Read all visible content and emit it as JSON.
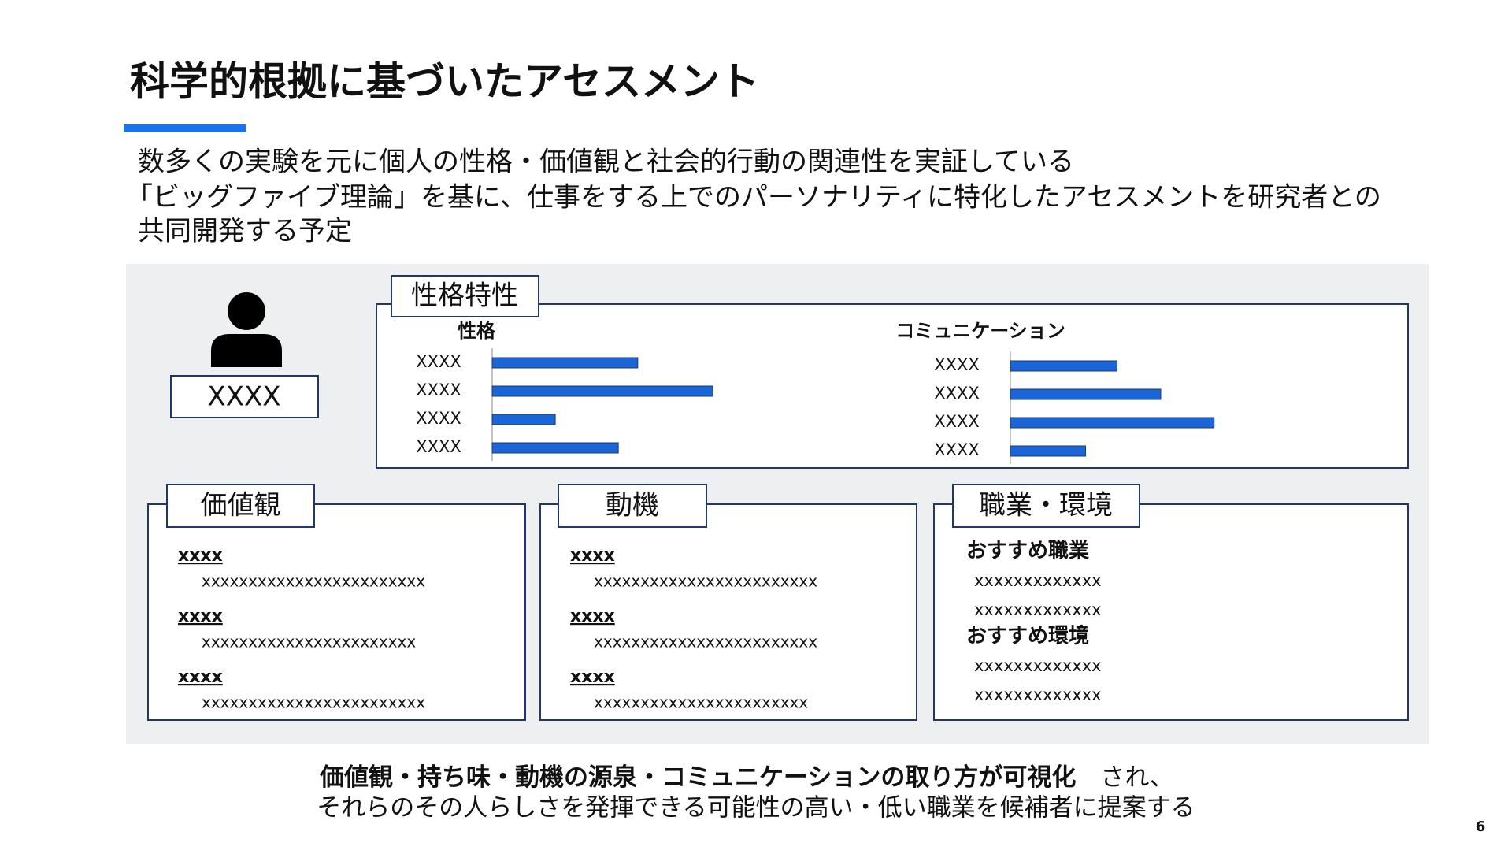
{
  "header": {
    "title": "科学的根拠に基づいたアセスメント"
  },
  "intro": {
    "lines": [
      "数多くの実験を元に個人の性格・価値観と社会的行動の関連性を実証している",
      "「ビッグファイブ理論」を基に、仕事をする上でのパーソナリティに特化したアセスメントを研究者との",
      "共同開発する予定"
    ]
  },
  "profile": {
    "name": "XXXX"
  },
  "traits": {
    "title": "性格特性"
  },
  "chart_data": [
    {
      "type": "bar",
      "title": "性格",
      "categories": [
        "XXXX",
        "XXXX",
        "XXXX",
        "XXXX"
      ],
      "values": [
        60,
        91,
        26,
        52
      ],
      "color": "#1a66d9"
    },
    {
      "type": "bar",
      "title": "コミュニケーション",
      "categories": [
        "XXXX",
        "XXXX",
        "XXXX",
        "XXXX"
      ],
      "values": [
        44,
        62,
        84,
        31
      ],
      "color": "#1a66d9"
    }
  ],
  "sections": [
    {
      "title": "価値観",
      "items": [
        {
          "heading": "xxxx",
          "text": "xxxxxxxxxxxxxxxxxxxxxxxx"
        },
        {
          "heading": "xxxx",
          "text": "xxxxxxxxxxxxxxxxxxxxxxx"
        },
        {
          "heading": "xxxx",
          "text": "xxxxxxxxxxxxxxxxxxxxxxxx"
        }
      ]
    },
    {
      "title": "動機",
      "items": [
        {
          "heading": "xxxx",
          "text": "xxxxxxxxxxxxxxxxxxxxxxxx"
        },
        {
          "heading": "xxxx",
          "text": "xxxxxxxxxxxxxxxxxxxxxxxx"
        },
        {
          "heading": "xxxx",
          "text": "xxxxxxxxxxxxxxxxxxxxxxx"
        }
      ]
    }
  ],
  "career": {
    "title": "職業・環境",
    "groups": [
      {
        "heading": "おすすめ職業",
        "lines": [
          "xxxxxxxxxxxxx",
          "xxxxxxxxxxxxx"
        ]
      },
      {
        "heading": "おすすめ環境",
        "lines": [
          "xxxxxxxxxxxxx",
          "xxxxxxxxxxxxx"
        ]
      }
    ]
  },
  "footer": {
    "line1_bold": "価値観・持ち味・動機の源泉・コミュニケーションの取り方が可視化",
    "line1_rest": "　され、",
    "line2": "それらのその人らしさを発揮できる可能性の高い・低い職業を候補者に提案する"
  },
  "page_number": "6"
}
